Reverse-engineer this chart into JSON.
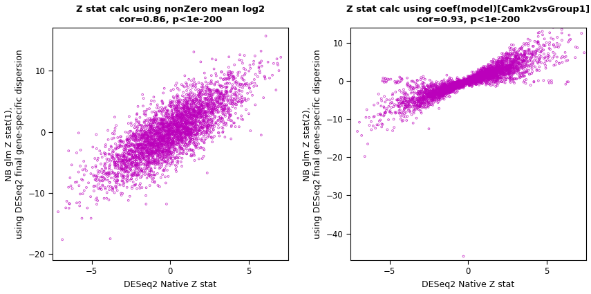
{
  "plot1": {
    "title_line1": "Z stat calc using nonZero mean log2",
    "title_line2": "cor=0.86, p<1e-200",
    "xlabel": "DESeq2 Native Z stat",
    "ylabel": "NB glm Z stat(1),\nusing DESeq2 final gene-specific dispersion",
    "xlim": [
      -7.5,
      7.5
    ],
    "ylim": [
      -21,
      17
    ],
    "xticks": [
      -5,
      0,
      5
    ],
    "yticks": [
      -20,
      -10,
      0,
      10
    ],
    "n_points": 3500,
    "slope": 1.55,
    "intercept": 0.0,
    "x_std": 2.2,
    "noise_std": 2.5,
    "seed": 42
  },
  "plot2": {
    "title_line1": "Z stat calc using coef(model)[Camk2vsGroup1]",
    "title_line2": "cor=0.93, p<1e-200",
    "xlabel": "DESeq2 Native Z stat",
    "ylabel": "NB glm Z stat(2),\nusing DESeq2 final gene-specific dispersion",
    "xlim": [
      -7.5,
      7.5
    ],
    "ylim": [
      -47,
      14
    ],
    "xticks": [
      -5,
      0,
      5
    ],
    "yticks": [
      -40,
      -30,
      -20,
      -10,
      0,
      10
    ],
    "n_points": 3500,
    "seed": 99
  },
  "point_color": "#BB00BB",
  "point_size": 4,
  "point_lw": 0.6,
  "point_alpha": 0.75,
  "title_fontsize": 9.5,
  "axis_label_fontsize": 9,
  "tick_fontsize": 8.5,
  "bg_color": "#ffffff",
  "face_color": "#ffffff"
}
